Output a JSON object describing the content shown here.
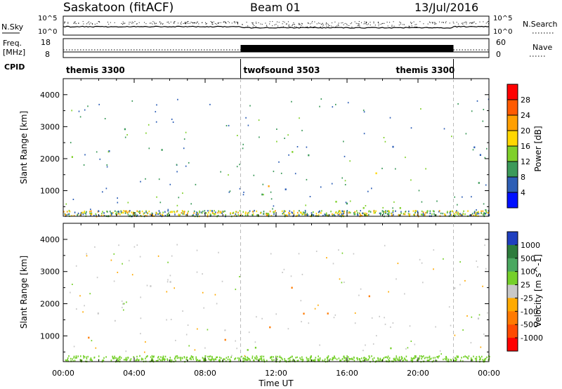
{
  "header": {
    "station": "Saskatoon (fitACF)",
    "beam": "Beam 01",
    "date": "13/Jul/2016"
  },
  "noise_panel": {
    "left_label": "N.Sky",
    "right_label": "N.Search",
    "left_ticks": [
      "10^5",
      "10^0"
    ],
    "right_ticks": [
      "10^5",
      "10^0"
    ]
  },
  "freq_panel": {
    "left_label": "Freq.",
    "left_unit": "[MHz]",
    "right_label": "Nave",
    "left_ticks": [
      "18",
      "8"
    ],
    "right_ticks": [
      "60",
      "0"
    ]
  },
  "cpid": {
    "label": "CPID",
    "segments": [
      {
        "name": "themis 3300",
        "start_hour": 0,
        "end_hour": 10
      },
      {
        "name": "twofsound 3503",
        "start_hour": 10,
        "end_hour": 22
      },
      {
        "name": "themis 3300",
        "start_hour": 22,
        "end_hour": 24
      }
    ]
  },
  "x_axis": {
    "label": "Time UT",
    "ticks": [
      "00:00",
      "04:00",
      "08:00",
      "12:00",
      "16:00",
      "20:00",
      "00:00"
    ]
  },
  "power_colorbar": {
    "label": "Power [dB]",
    "ticks": [
      "28",
      "24",
      "20",
      "16",
      "12",
      "8",
      "4"
    ],
    "colors": [
      "#ff0000",
      "#ff5a00",
      "#ff9f00",
      "#ffd700",
      "#7fd02a",
      "#3c9a5a",
      "#2e5fb6",
      "#0010ff"
    ]
  },
  "velocity_colorbar": {
    "label": "Velocity [m s^-1]",
    "ticks": [
      "1000",
      "500",
      "100",
      "25",
      "-25",
      "-100",
      "-500",
      "-1000"
    ],
    "colors": [
      "#1f3fbf",
      "#2d7c3c",
      "#4aa860",
      "#75d02a",
      "#c8c8c8",
      "#ffaa00",
      "#ff7a00",
      "#ff4a00",
      "#ff0000"
    ]
  },
  "chart_data": [
    {
      "type": "heatmap",
      "title": "Power",
      "xlabel": "Time UT",
      "ylabel": "Slant Range [km]",
      "xlim": [
        0,
        24
      ],
      "ylim": [
        200,
        4500
      ],
      "y_ticks": [
        "1000",
        "2000",
        "3000",
        "4000"
      ],
      "z_label": "Power [dB]",
      "scatter_bands": [
        {
          "t0": 0.1,
          "t1": 1.6,
          "r0": 250,
          "r1": 700,
          "zmin": 8,
          "zmax": 28
        },
        {
          "t0": 0.1,
          "t1": 4.6,
          "r0": 1600,
          "r1": 2400,
          "zmin": 4,
          "zmax": 20
        },
        {
          "t0": 3.0,
          "t1": 6.6,
          "r0": 2200,
          "r1": 3400,
          "zmin": 4,
          "zmax": 20
        },
        {
          "t0": 8.2,
          "t1": 12.6,
          "r0": 700,
          "r1": 1500,
          "zmin": 4,
          "zmax": 28
        },
        {
          "t0": 10.2,
          "t1": 24.0,
          "r0": 250,
          "r1": 1400,
          "zmin": 4,
          "zmax": 20
        },
        {
          "t0": 12.8,
          "t1": 18.6,
          "r0": 1500,
          "r1": 2600,
          "zmin": 4,
          "zmax": 20
        },
        {
          "t0": 21.6,
          "t1": 24.0,
          "r0": 1200,
          "r1": 2600,
          "zmin": 4,
          "zmax": 12
        }
      ]
    },
    {
      "type": "heatmap",
      "title": "Velocity",
      "xlabel": "Time UT",
      "ylabel": "Slant Range [km]",
      "xlim": [
        0,
        24
      ],
      "ylim": [
        200,
        4500
      ],
      "y_ticks": [
        "1000",
        "2000",
        "3000",
        "4000"
      ],
      "z_label": "Velocity [m s^-1]",
      "scatter_bands": [
        {
          "t0": 0.1,
          "t1": 1.6,
          "r0": 300,
          "r1": 1000,
          "vmin": -500,
          "vmax": -100
        },
        {
          "t0": 0.1,
          "t1": 4.6,
          "r0": 1600,
          "r1": 2400,
          "vmin": -25,
          "vmax": 25
        },
        {
          "t0": 3.0,
          "t1": 6.6,
          "r0": 2200,
          "r1": 3400,
          "vmin": -25,
          "vmax": 25
        },
        {
          "t0": 8.2,
          "t1": 12.6,
          "r0": 700,
          "r1": 1500,
          "vmin": -500,
          "vmax": -100
        },
        {
          "t0": 10.2,
          "t1": 24.0,
          "r0": 250,
          "r1": 700,
          "vmin": 25,
          "vmax": 100
        },
        {
          "t0": 12.8,
          "t1": 18.6,
          "r0": 1500,
          "r1": 2600,
          "vmin": -500,
          "vmax": 25
        },
        {
          "t0": 21.6,
          "t1": 24.0,
          "r0": 1200,
          "r1": 2600,
          "vmin": -25,
          "vmax": 25
        }
      ]
    }
  ]
}
